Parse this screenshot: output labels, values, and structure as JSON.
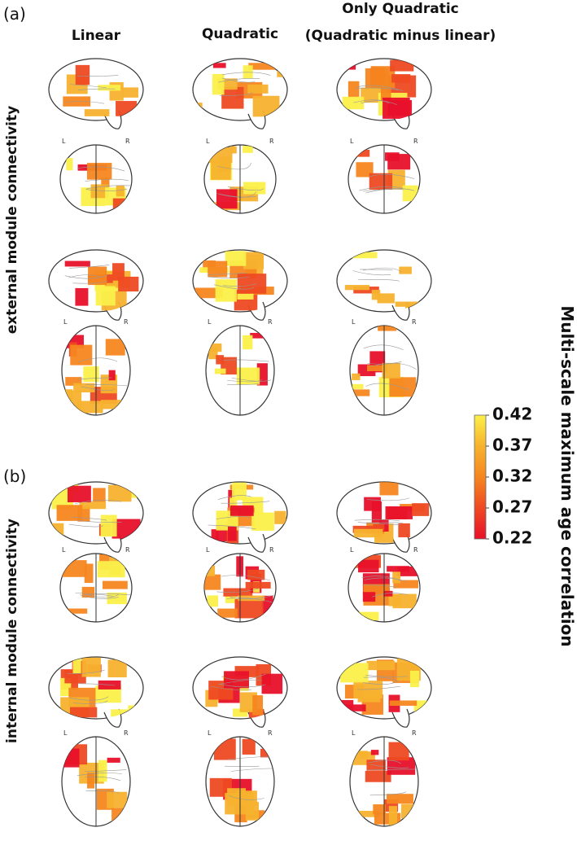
{
  "panel_labels": [
    "(a)",
    "(b)"
  ],
  "columns": [
    "Linear",
    "Quadratic",
    "Only Quadratic",
    "(Quadratic minus linear)"
  ],
  "rows": [
    "external module connectivity",
    "internal module connectivity"
  ],
  "orientation": {
    "left": "L",
    "right": "R"
  },
  "colorbar": {
    "label": "Multi-scale maximum age correlation",
    "range": [
      0.22,
      0.42
    ],
    "ticks": [
      0.22,
      0.27,
      0.32,
      0.37,
      0.42
    ],
    "colormap": [
      "#e8102a",
      "#ee4a22",
      "#f5861f",
      "#f7b22e",
      "#fbf04a"
    ]
  }
}
